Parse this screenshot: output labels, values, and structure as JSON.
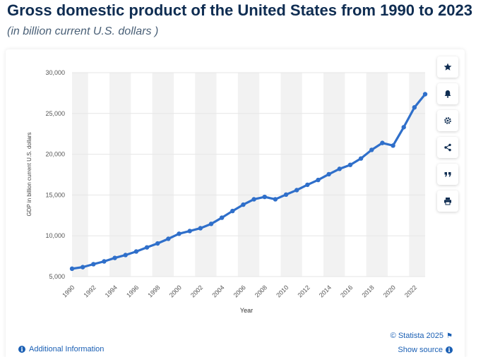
{
  "header": {
    "title": "Gross domestic product of the United States from 1990 to 2023",
    "subtitle": "(in billion current U.S. dollars )"
  },
  "tools": [
    {
      "icon": "star-icon",
      "label": "Favorite"
    },
    {
      "icon": "bell-icon",
      "label": "Notification"
    },
    {
      "icon": "gear-icon",
      "label": "Settings"
    },
    {
      "icon": "share-icon",
      "label": "Share"
    },
    {
      "icon": "quote-icon",
      "label": "Cite"
    },
    {
      "icon": "print-icon",
      "label": "Print"
    }
  ],
  "footer": {
    "copyright": "© Statista 2025",
    "show_source": "Show source",
    "additional_info": "Additional Information"
  },
  "colors": {
    "line": "#2f6fca",
    "band": "#f2f2f2",
    "grid": "#e6e6e6",
    "link": "#1a5fb4",
    "title": "#0f2d52"
  },
  "chart_data": {
    "type": "line",
    "title": "Gross domestic product of the United States from 1990 to 2023",
    "subtitle": "(in billion current U.S. dollars )",
    "xlabel": "Year",
    "ylabel": "GDP in billion current U.S. dollars",
    "ylim": [
      5000,
      30000
    ],
    "yticks": [
      5000,
      10000,
      15000,
      20000,
      25000,
      30000
    ],
    "ytick_labels": [
      "5,000",
      "10,000",
      "15,000",
      "20,000",
      "25,000",
      "30,000"
    ],
    "xtick_labels": [
      "1990",
      "1992",
      "1994",
      "1996",
      "1998",
      "2000",
      "2002",
      "2004",
      "2006",
      "2008",
      "2010",
      "2012",
      "2014",
      "2016",
      "2018",
      "2020",
      "2022"
    ],
    "grid": true,
    "x": [
      1990,
      1991,
      1992,
      1993,
      1994,
      1995,
      1996,
      1997,
      1998,
      1999,
      2000,
      2001,
      2002,
      2003,
      2004,
      2005,
      2006,
      2007,
      2008,
      2009,
      2010,
      2011,
      2012,
      2013,
      2014,
      2015,
      2016,
      2017,
      2018,
      2019,
      2020,
      2021,
      2022,
      2023
    ],
    "series": [
      {
        "values": [
          5963,
          6158,
          6520,
          6859,
          7287,
          7640,
          8073,
          8578,
          9063,
          9631,
          10251,
          10582,
          10929,
          11457,
          12217,
          13039,
          13816,
          14474,
          14770,
          14478,
          15049,
          15600,
          16254,
          16843,
          17551,
          18206,
          18695,
          19477,
          20533,
          21381,
          21060,
          23315,
          25744,
          27361
        ]
      }
    ]
  }
}
